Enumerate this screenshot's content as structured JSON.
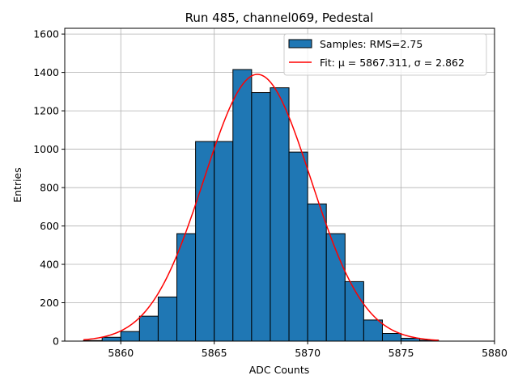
{
  "chart_data": {
    "type": "bar",
    "title": "Run 485, channel069, Pedestal",
    "xlabel": "ADC Counts",
    "ylabel": "Entries",
    "xlim": [
      5857,
      5880
    ],
    "ylim": [
      0,
      1630
    ],
    "xticks": [
      5860,
      5865,
      5870,
      5875,
      5880
    ],
    "yticks": [
      0,
      200,
      400,
      600,
      800,
      1000,
      1200,
      1400,
      1600
    ],
    "grid": true,
    "legend_position": "top-right",
    "bin_edges": [
      5858,
      5859,
      5860,
      5861,
      5862,
      5863,
      5864,
      5865,
      5866,
      5867,
      5868,
      5869,
      5870,
      5871,
      5872,
      5873,
      5874,
      5875,
      5876,
      5877
    ],
    "counts": [
      3,
      20,
      50,
      130,
      230,
      560,
      1040,
      1040,
      1415,
      1295,
      1320,
      985,
      715,
      560,
      310,
      110,
      40,
      15,
      5
    ],
    "series": [
      {
        "name": "Samples: RMS=2.75",
        "kind": "histogram",
        "color": "#1f77b4"
      },
      {
        "name": "Fit: μ = 5867.311, σ = 2.862",
        "kind": "gaussian",
        "color": "#ff0000",
        "mu": 5867.311,
        "sigma": 2.862,
        "amplitude": 1390,
        "x_range": [
          5858,
          5877
        ]
      }
    ]
  }
}
